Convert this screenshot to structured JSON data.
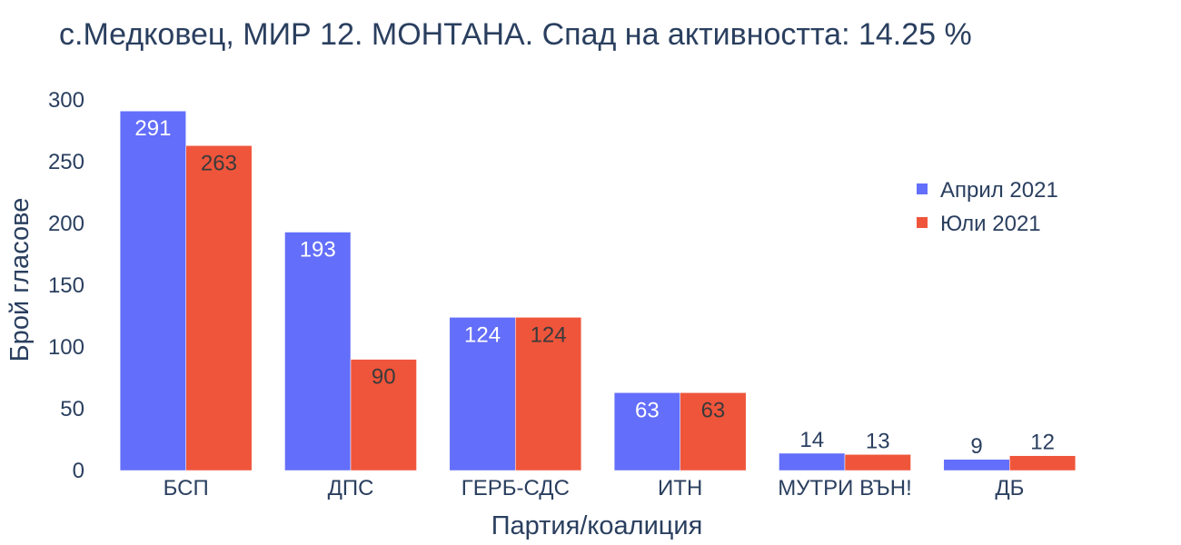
{
  "chart_data": {
    "type": "bar",
    "title": "с.Медковец, МИР 12. МОНТАНА. Спад на активността: 14.25 %",
    "xlabel": "Партия/коалиция",
    "ylabel": "Брой гласове",
    "categories": [
      "БСП",
      "ДПС",
      "ГЕРБ-СДС",
      "ИТН",
      "МУТРИ ВЪН!",
      "ДБ"
    ],
    "series": [
      {
        "name": "Април 2021",
        "color": "#636efa",
        "values": [
          291,
          193,
          124,
          63,
          14,
          9
        ]
      },
      {
        "name": "Юли 2021",
        "color": "#ef553b",
        "values": [
          263,
          90,
          124,
          63,
          13,
          12
        ]
      }
    ],
    "ylim": [
      0,
      300
    ],
    "yticks": [
      0,
      50,
      100,
      150,
      200,
      250,
      300
    ],
    "grid": false,
    "legend_position": "right"
  }
}
